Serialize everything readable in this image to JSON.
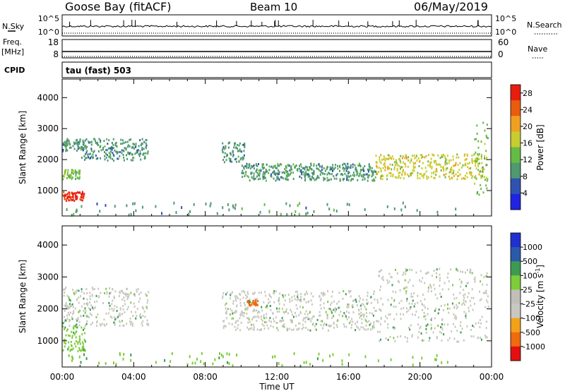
{
  "header": {
    "station": "Goose Bay (fitACF)",
    "beam": "Beam 10",
    "date": "06/May/2019"
  },
  "strips": {
    "nsky": {
      "label": "N.Sky",
      "left_ticks": [
        "10^5",
        "10^0"
      ],
      "right_ticks": [
        "10^5",
        "10^0"
      ],
      "right_label": "N.Search"
    },
    "freq": {
      "label_line1": "Freq.",
      "label_line2": "[MHz]",
      "left_ticks": [
        "18",
        "8"
      ],
      "right_ticks": [
        "60",
        "0"
      ],
      "right_label": "Nave"
    },
    "cpid": {
      "label": "CPID",
      "value": "tau (fast) 503"
    }
  },
  "colors": {
    "power": [
      "#2024e0",
      "#2f53b0",
      "#4f9870",
      "#66bb44",
      "#c8cc30",
      "#f0a020",
      "#e85c10",
      "#e61e10"
    ],
    "velocity": [
      "#e41010",
      "#f06a10",
      "#f2a21a",
      "#c8c8c0",
      "#c0c0b8",
      "#7dcc3a",
      "#3e9a52",
      "#2a5aaa",
      "#2030d0"
    ]
  },
  "chart_data": [
    {
      "type": "heatmap",
      "panel": "power",
      "xlabel": "Time UT",
      "ylabel": "Slant Range [km]",
      "xlim": [
        0,
        24
      ],
      "ylim": [
        180,
        4600
      ],
      "x_ticks": [
        "00:00",
        "04:00",
        "08:00",
        "12:00",
        "16:00",
        "20:00",
        "00:00"
      ],
      "y_ticks": [
        1000,
        2000,
        3000,
        4000
      ],
      "colorbar": {
        "label": "Power [dB]",
        "ticks": [
          4,
          8,
          12,
          16,
          20,
          24,
          28
        ],
        "range": [
          0,
          30
        ]
      },
      "echo_bands": [
        {
          "start_h": 0.0,
          "end_h": 1.2,
          "range_from_km": 700,
          "range_to_km": 1000,
          "value": 28
        },
        {
          "start_h": 0.0,
          "end_h": 1.0,
          "range_from_km": 1400,
          "range_to_km": 1700,
          "value": 14
        },
        {
          "start_h": 0.0,
          "end_h": 1.0,
          "range_from_km": 2300,
          "range_to_km": 2700,
          "value": 8
        },
        {
          "start_h": 1.0,
          "end_h": 4.8,
          "range_from_km": 2000,
          "range_to_km": 2700,
          "value": 8
        },
        {
          "start_h": 8.9,
          "end_h": 10.2,
          "range_from_km": 1950,
          "range_to_km": 2600,
          "value": 8
        },
        {
          "start_h": 10.0,
          "end_h": 17.5,
          "range_from_km": 1350,
          "range_to_km": 1900,
          "value": 10
        },
        {
          "start_h": 17.5,
          "end_h": 23.7,
          "range_from_km": 1400,
          "range_to_km": 2200,
          "value": 16
        },
        {
          "start_h": 23.0,
          "end_h": 23.8,
          "range_from_km": 900,
          "range_to_km": 3300,
          "value": 12
        },
        {
          "start_h": 0.0,
          "end_h": 22.0,
          "range_from_km": 250,
          "range_to_km": 650,
          "value": 8
        }
      ]
    },
    {
      "type": "heatmap",
      "panel": "velocity",
      "xlabel": "Time UT",
      "ylabel": "Slant Range [km]",
      "xlim": [
        0,
        24
      ],
      "ylim": [
        180,
        4600
      ],
      "x_ticks": [
        "00:00",
        "04:00",
        "08:00",
        "12:00",
        "16:00",
        "20:00",
        "00:00"
      ],
      "y_ticks": [
        1000,
        2000,
        3000,
        4000
      ],
      "colorbar": {
        "label": "Velocity [m s^-1]",
        "ticks": [
          "1000",
          "500",
          "100",
          "25",
          "-25",
          "-100",
          "-500",
          "-1000"
        ]
      },
      "echo_bands": [
        {
          "start_h": 0.0,
          "end_h": 1.3,
          "range_from_km": 700,
          "range_to_km": 1500,
          "value": 100
        },
        {
          "start_h": 0.0,
          "end_h": 4.8,
          "range_from_km": 1500,
          "range_to_km": 2700,
          "value": 0
        },
        {
          "start_h": 8.9,
          "end_h": 17.5,
          "range_from_km": 1350,
          "range_to_km": 2600,
          "value": 0
        },
        {
          "start_h": 10.3,
          "end_h": 10.9,
          "range_from_km": 2100,
          "range_to_km": 2300,
          "value": -300
        },
        {
          "start_h": 17.5,
          "end_h": 23.8,
          "range_from_km": 1000,
          "range_to_km": 3300,
          "value": 0
        },
        {
          "start_h": 0.0,
          "end_h": 22.0,
          "range_from_km": 250,
          "range_to_km": 650,
          "value": 100
        }
      ]
    }
  ]
}
